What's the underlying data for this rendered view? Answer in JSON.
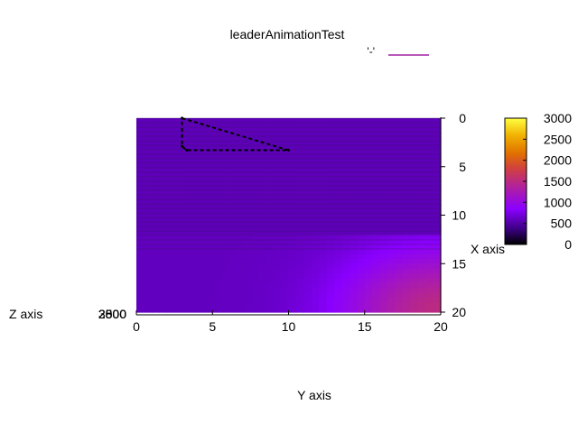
{
  "chart_data": {
    "type": "heatmap",
    "title": "leaderAnimationTest",
    "legend": {
      "key_label": "'-'",
      "key_color": "#a020a0",
      "placement": "top-right"
    },
    "xlabel": "Y axis",
    "ylabel": "X axis",
    "zlabel": "Z axis",
    "z_overlap_ticks": [
      "2500",
      "2800",
      "3000"
    ],
    "x_axis": {
      "range": [
        0,
        20
      ],
      "ticks": [
        "0",
        "5",
        "10",
        "15",
        "20"
      ]
    },
    "y_axis": {
      "range": [
        0,
        20
      ],
      "ticks": [
        "0",
        "5",
        "10",
        "15",
        "20"
      ],
      "reversed": true
    },
    "colorbar": {
      "range": [
        0,
        3000
      ],
      "ticks": [
        "0",
        "500",
        "1000",
        "1500",
        "2000",
        "2500",
        "3000"
      ],
      "palette": [
        "#000000",
        "#3a0080",
        "#6a00d0",
        "#8a00ff",
        "#b020a0",
        "#d04040",
        "#e07000",
        "#f0b000",
        "#ffe000",
        "#ffff40"
      ]
    },
    "surface": {
      "description_formula": "z rises toward Y=20, X=20 corner",
      "min_value": 600,
      "max_value": 1500
    },
    "path": {
      "style": "dashed",
      "color": "#000000",
      "points": [
        [
          3,
          0
        ],
        [
          10,
          3.3
        ],
        [
          3.3,
          3.3
        ],
        [
          3,
          2.9
        ],
        [
          3,
          0
        ]
      ]
    },
    "grid": false
  }
}
